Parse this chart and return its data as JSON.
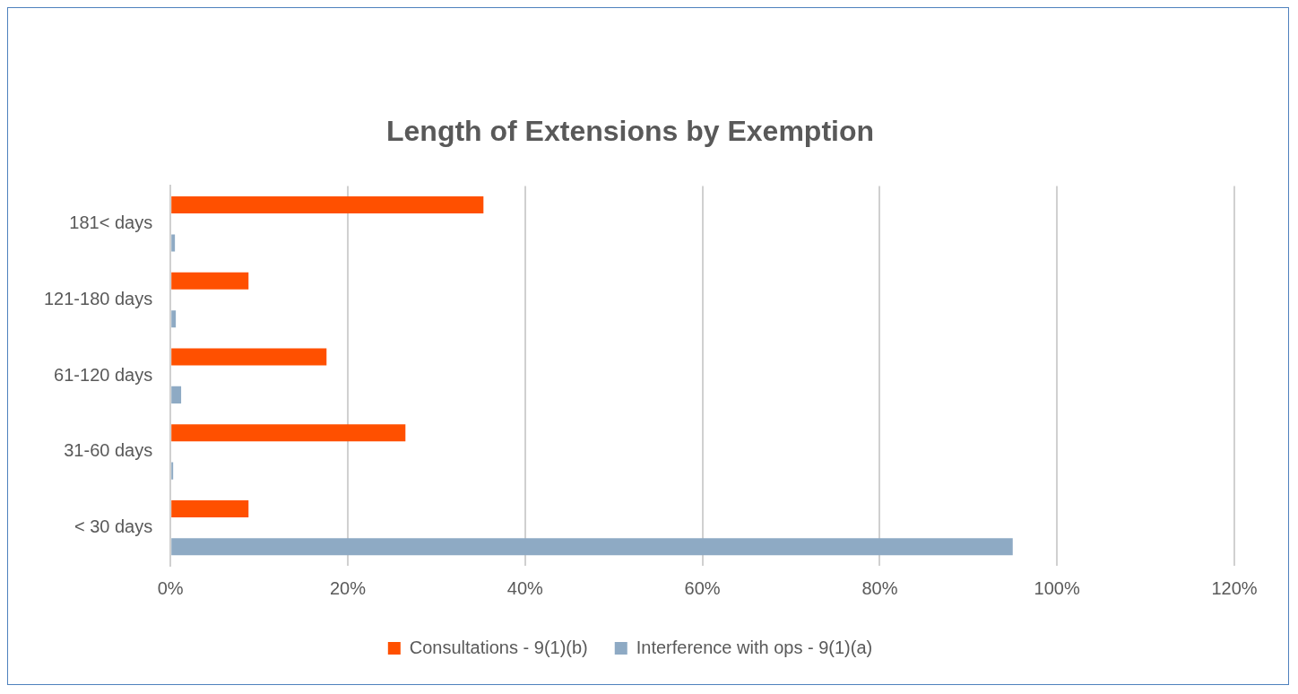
{
  "chart_data": {
    "type": "bar",
    "orientation": "horizontal",
    "title": "Length of Extensions by Exemption",
    "categories": [
      "181< days",
      "121-180 days",
      "61-120 days",
      "31-60 days",
      "< 30 days"
    ],
    "series": [
      {
        "name": "Consultations - 9(1)(b)",
        "color": "#ff5000",
        "values": [
          35.3,
          8.8,
          17.6,
          26.5,
          8.8
        ]
      },
      {
        "name": "Interference with ops - 9(1)(a)",
        "color": "#8eaac4",
        "values": [
          0.5,
          0.6,
          1.2,
          0.3,
          95.0
        ]
      }
    ],
    "xlim": [
      0,
      120
    ],
    "xticks": [
      {
        "value": 0,
        "label": "0%"
      },
      {
        "value": 20,
        "label": "20%"
      },
      {
        "value": 40,
        "label": "40%"
      },
      {
        "value": 60,
        "label": "60%"
      },
      {
        "value": 80,
        "label": "80%"
      },
      {
        "value": 100,
        "label": "100%"
      },
      {
        "value": 120,
        "label": "120%"
      }
    ],
    "grid": "x",
    "legend": "bottom"
  }
}
